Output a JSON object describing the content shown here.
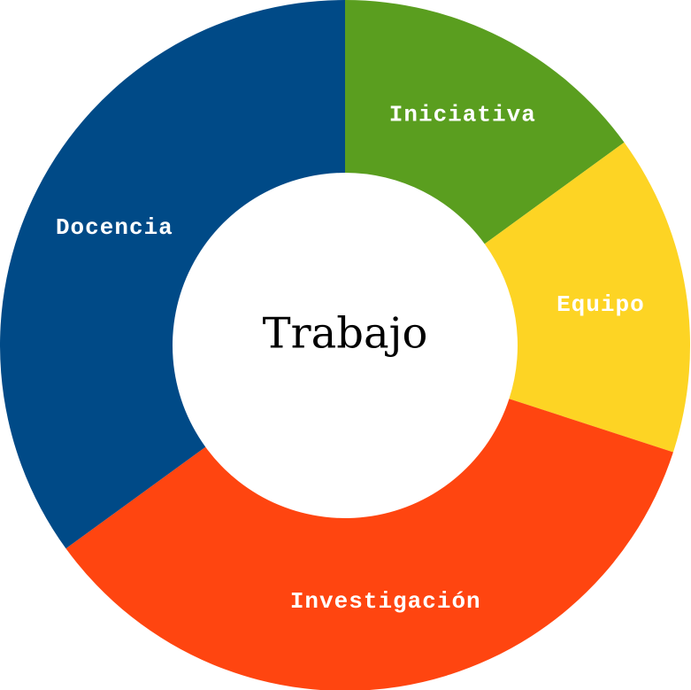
{
  "chart_data": {
    "type": "pie",
    "title": "Trabajo",
    "categories": [
      "Iniciativa",
      "Equipo",
      "Investigación",
      "Docencia"
    ],
    "values": [
      15,
      15,
      35,
      35
    ],
    "colors": [
      "#5a9e1f",
      "#fdd424",
      "#ff4510",
      "#004a87"
    ],
    "start_angle_deg": 0,
    "direction": "clockwise",
    "donut": true
  }
}
